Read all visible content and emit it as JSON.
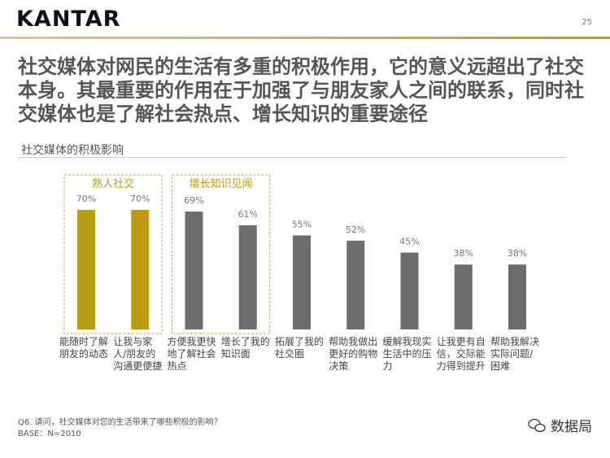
{
  "header": {
    "logo": "KANTAR",
    "page_number": "25"
  },
  "title": "社交媒体对网民的生活有多重的积极作用，它的意义远超出了社交本身。其最重要的作用在于加强了与朋友家人之间的联系，同时社交媒体也是了解社会热点、增长知识的重要途径",
  "chart_data": {
    "type": "bar",
    "title": "社交媒体的积极影响",
    "categories": [
      "能随时了解朋友的动态",
      "让我与家人/朋友的沟通更便捷",
      "方便我更快地了解社会热点",
      "增长了我的知识面",
      "拓展了我的社交圈",
      "帮助我做出更好的购物决策",
      "缓解我现实生活中的压力",
      "让我更有自信，交际能力得到提升",
      "帮助我解决实际问题/困难"
    ],
    "values": [
      70,
      70,
      69,
      61,
      55,
      52,
      45,
      38,
      38
    ],
    "value_labels": [
      "70%",
      "70%",
      "69%",
      "61%",
      "55%",
      "52%",
      "45%",
      "38%",
      "38%"
    ],
    "colors": [
      "#b89d14",
      "#b89d14",
      "#6e6b6c",
      "#6e6b6c",
      "#6e6b6c",
      "#6e6b6c",
      "#6e6b6c",
      "#6e6b6c",
      "#6e6b6c"
    ],
    "groups": [
      {
        "label": "熟人社交",
        "first": 0,
        "last": 1
      },
      {
        "label": "增长知识见闻",
        "first": 2,
        "last": 3
      }
    ]
  },
  "footnotes": [
    "Q6. 请问，社交媒体对您的生活带来了哪些积极的影响？",
    "BASE：N=2010"
  ],
  "watermark": "数据局"
}
